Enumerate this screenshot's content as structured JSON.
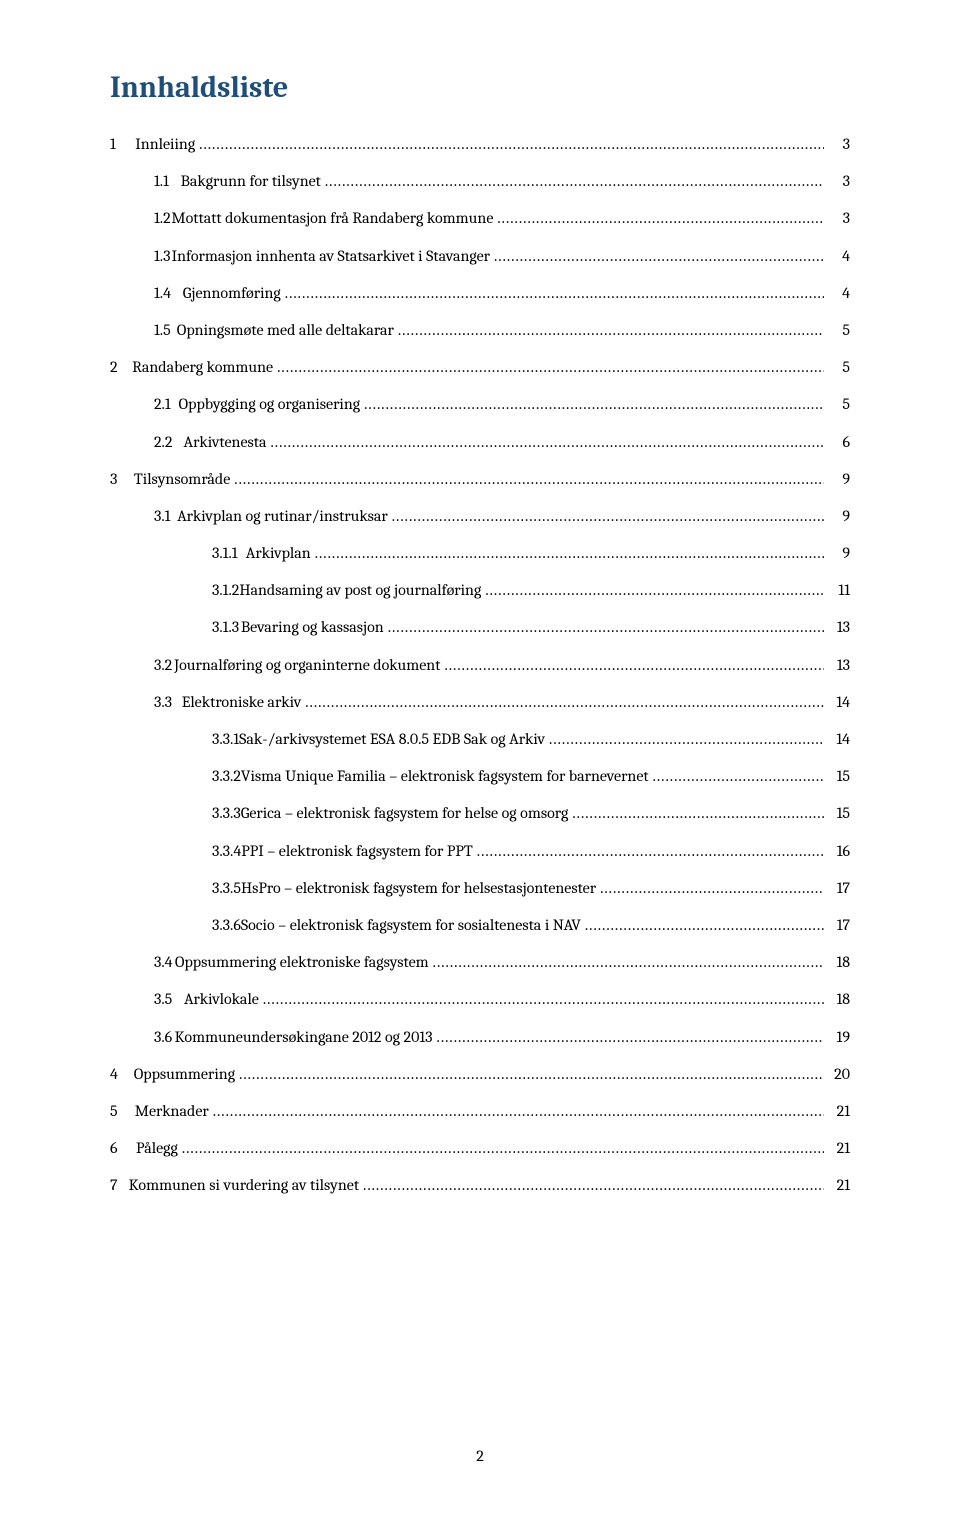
{
  "colors": {
    "title": "#1f4e79",
    "text": "#000000",
    "background": "#ffffff"
  },
  "typography": {
    "title_fontsize_pt": 22,
    "body_fontsize_pt": 12,
    "font_family": "Cambria"
  },
  "title": "Innhaldsliste",
  "footer_page_number": "2",
  "toc": [
    {
      "level": 1,
      "num": "1",
      "label": "Innleiing",
      "page": "3"
    },
    {
      "level": 2,
      "num": "1.1",
      "label": "Bakgrunn for tilsynet",
      "page": "3"
    },
    {
      "level": 2,
      "num": "1.2",
      "label": "Mottatt dokumentasjon frå Randaberg kommune",
      "page": "3"
    },
    {
      "level": 2,
      "num": "1.3",
      "label": "Informasjon innhenta av Statsarkivet i Stavanger",
      "page": "4"
    },
    {
      "level": 2,
      "num": "1.4",
      "label": "Gjennomføring",
      "page": "4"
    },
    {
      "level": 2,
      "num": "1.5",
      "label": "Opningsmøte med alle deltakarar",
      "page": "5"
    },
    {
      "level": 1,
      "num": "2",
      "label": "Randaberg kommune",
      "page": "5"
    },
    {
      "level": 2,
      "num": "2.1",
      "label": "Oppbygging og organisering",
      "page": "5"
    },
    {
      "level": 2,
      "num": "2.2",
      "label": "Arkivtenesta",
      "page": "6"
    },
    {
      "level": 1,
      "num": "3",
      "label": "Tilsynsområde",
      "page": "9"
    },
    {
      "level": 2,
      "num": "3.1",
      "label": "Arkivplan og rutinar/instruksar",
      "page": "9"
    },
    {
      "level": 3,
      "num": "3.1.1",
      "label": "Arkivplan",
      "page": "9"
    },
    {
      "level": 3,
      "num": "3.1.2",
      "label": "Handsaming av post og journalføring",
      "page": "11"
    },
    {
      "level": 3,
      "num": "3.1.3",
      "label": "Bevaring og kassasjon",
      "page": "13"
    },
    {
      "level": 2,
      "num": "3.2",
      "label": "Journalføring og organinterne dokument",
      "page": "13"
    },
    {
      "level": 2,
      "num": "3.3",
      "label": "Elektroniske arkiv",
      "page": "14"
    },
    {
      "level": 3,
      "num": "3.3.1",
      "label": "Sak-/arkivsystemet ESA 8.0.5 EDB Sak og Arkiv",
      "page": "14"
    },
    {
      "level": 3,
      "num": "3.3.2",
      "label": "Visma Unique Familia – elektronisk fagsystem for barnevernet",
      "page": "15"
    },
    {
      "level": 3,
      "num": "3.3.3",
      "label": "Gerica – elektronisk fagsystem for helse og omsorg",
      "page": "15"
    },
    {
      "level": 3,
      "num": "3.3.4",
      "label": "PPI – elektronisk fagsystem for PPT",
      "page": "16"
    },
    {
      "level": 3,
      "num": "3.3.5",
      "label": "HsPro – elektronisk fagsystem for helsestasjontenester",
      "page": "17"
    },
    {
      "level": 3,
      "num": "3.3.6",
      "label": "Socio – elektronisk fagsystem for sosialtenesta i NAV",
      "page": "17"
    },
    {
      "level": 2,
      "num": "3.4",
      "label": "Oppsummering elektroniske fagsystem",
      "page": "18"
    },
    {
      "level": 2,
      "num": "3.5",
      "label": "Arkivlokale",
      "page": "18"
    },
    {
      "level": 2,
      "num": "3.6",
      "label": "Kommuneundersøkingane 2012 og 2013",
      "page": "19"
    },
    {
      "level": 1,
      "num": "4",
      "label": "Oppsummering",
      "page": "20"
    },
    {
      "level": 1,
      "num": "5",
      "label": "Merknader",
      "page": "21"
    },
    {
      "level": 1,
      "num": "6",
      "label": "Pålegg",
      "page": "21"
    },
    {
      "level": 1,
      "num": "7",
      "label": "Kommunen si vurdering av tilsynet",
      "page": "21"
    }
  ]
}
